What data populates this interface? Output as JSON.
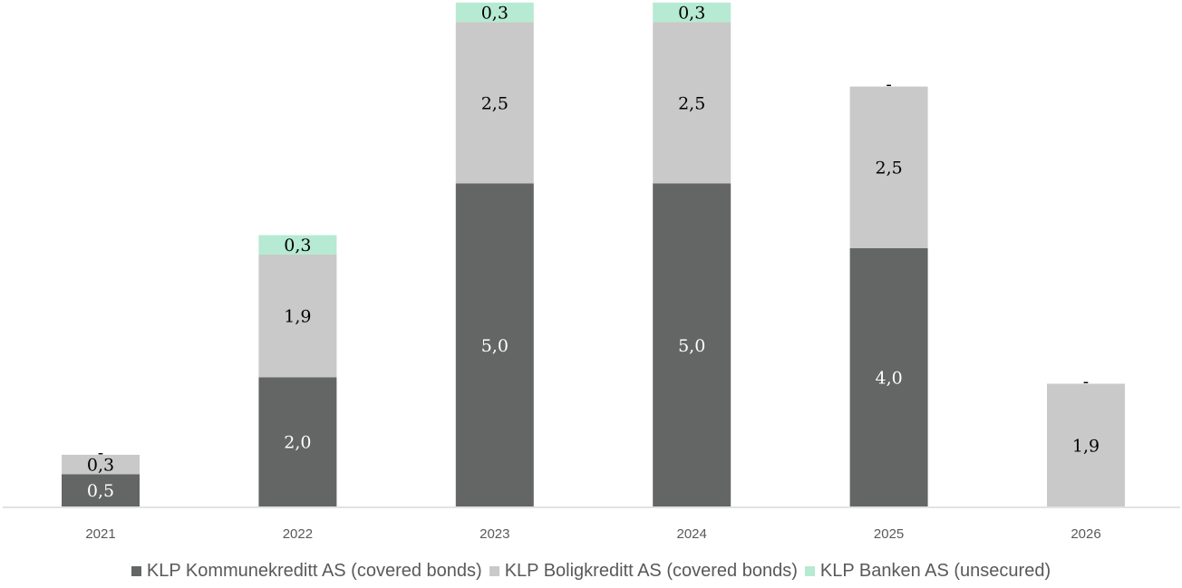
{
  "chart_data": {
    "type": "bar",
    "stacked": true,
    "categories": [
      "2021",
      "2022",
      "2023",
      "2024",
      "2025",
      "2026"
    ],
    "series": [
      {
        "name": "KLP Kommunekreditt AS (covered bonds)",
        "color": "#636664",
        "label_color": "#ffffff",
        "values": [
          0.5,
          2.0,
          5.0,
          5.0,
          4.0,
          0
        ],
        "labels": [
          "0,5",
          "2,0",
          "5,0",
          "5,0",
          "4,0",
          ""
        ]
      },
      {
        "name": "KLP Boligkreditt AS (covered bonds)",
        "color": "#c8c9c8",
        "label_color": "#000000",
        "values": [
          0.3,
          1.9,
          2.5,
          2.5,
          2.5,
          1.9
        ],
        "labels": [
          "0,3",
          "1,9",
          "2,5",
          "2,5",
          "2,5",
          "1,9"
        ]
      },
      {
        "name": "KLP Banken AS (unsecured)",
        "color": "#b6ead2",
        "label_color": "#000000",
        "values": [
          0,
          0.3,
          0.3,
          0.3,
          0,
          0
        ],
        "labels": [
          "-",
          "0,3",
          "0,3",
          "0,3",
          "-",
          "-"
        ]
      }
    ],
    "ylim": [
      0,
      7.8
    ],
    "grid": false,
    "legend_position": "bottom"
  }
}
